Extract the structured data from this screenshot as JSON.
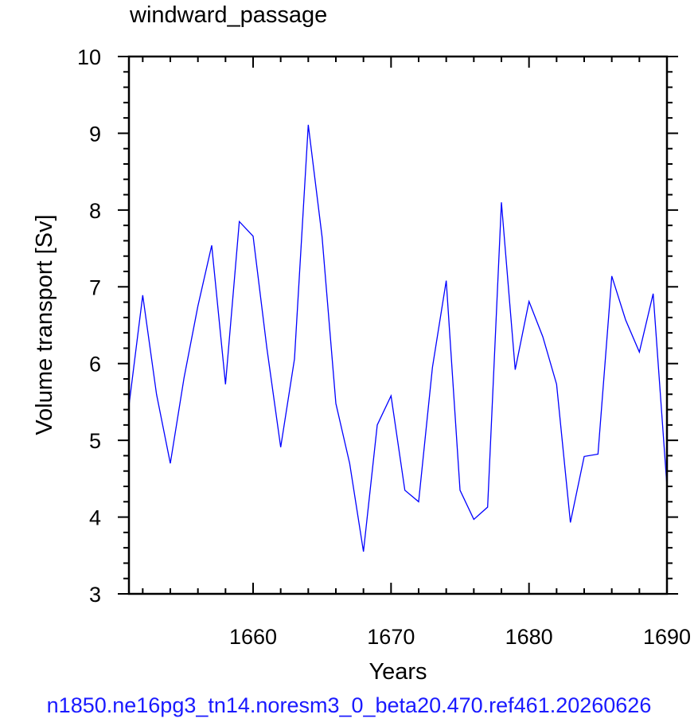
{
  "chart_data": {
    "type": "line",
    "title": "windward_passage",
    "xlabel": "Years",
    "ylabel": "Volume transport [Sv]",
    "xlim": [
      1651,
      1690
    ],
    "ylim": [
      3,
      10
    ],
    "xticks": [
      1660,
      1670,
      1680,
      1690
    ],
    "yticks": [
      3,
      4,
      5,
      6,
      7,
      8,
      9,
      10
    ],
    "grid": false,
    "series": [
      {
        "color": "#0000ff",
        "x": [
          1651,
          1652,
          1653,
          1654,
          1655,
          1656,
          1657,
          1658,
          1659,
          1660,
          1661,
          1662,
          1663,
          1664,
          1665,
          1666,
          1667,
          1668,
          1669,
          1670,
          1671,
          1672,
          1673,
          1674,
          1675,
          1676,
          1677,
          1678,
          1679,
          1680,
          1681,
          1682,
          1683,
          1684,
          1685,
          1686,
          1687,
          1688,
          1689,
          1690
        ],
        "values": [
          5.45,
          6.89,
          5.6,
          4.7,
          5.82,
          6.75,
          7.54,
          5.73,
          7.85,
          7.66,
          6.2,
          4.91,
          6.06,
          9.11,
          7.65,
          5.48,
          4.7,
          3.55,
          5.2,
          5.58,
          4.35,
          4.2,
          5.95,
          7.08,
          4.35,
          3.97,
          4.13,
          8.1,
          5.92,
          6.81,
          6.35,
          5.73,
          3.93,
          4.79,
          4.82,
          7.14,
          6.57,
          6.15,
          6.91,
          4.4
        ]
      }
    ]
  },
  "caption": "n1850.ne16pg3_tn14.noresm3_0_beta20.470.ref461.20260626"
}
